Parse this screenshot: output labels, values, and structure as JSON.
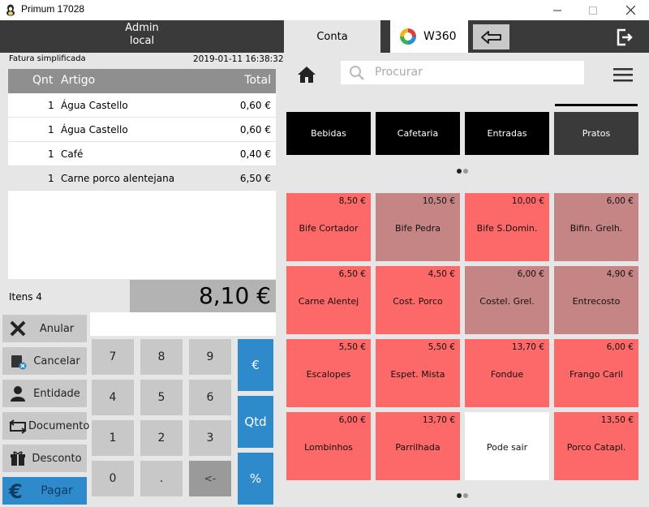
{
  "window": {
    "title": "Primum 17028"
  },
  "user": {
    "name": "Admin",
    "location": "local"
  },
  "tabs": {
    "conta": "Conta",
    "brand": "W360"
  },
  "document": {
    "type": "Fatura simplificada",
    "datetime": "2019-01-11 16:38:32"
  },
  "items_table": {
    "headers": {
      "qty": "Qnt",
      "article": "Artigo",
      "total": "Total"
    },
    "rows": [
      {
        "qty": "1",
        "article": "Água Castello",
        "total": "0,60 €"
      },
      {
        "qty": "1",
        "article": "Água Castello",
        "total": "0,60 €"
      },
      {
        "qty": "1",
        "article": "Café",
        "total": "0,40 €"
      },
      {
        "qty": "1",
        "article": "Carne porco alentejana",
        "total": "6,50 €"
      }
    ]
  },
  "summary": {
    "items_label": "Itens 4",
    "total": "8,10 €"
  },
  "actions": {
    "anular": "Anular",
    "cancelar": "Cancelar",
    "entidade": "Entidade",
    "documento": "Documento",
    "desconto": "Desconto",
    "pagar": "Pagar"
  },
  "keypad": {
    "k7": "7",
    "k8": "8",
    "k9": "9",
    "k4": "4",
    "k5": "5",
    "k6": "6",
    "k1": "1",
    "k2": "2",
    "k3": "3",
    "k0": "0",
    "dot": ".",
    "del": "<-",
    "euro": "€",
    "qtd": "Qtd",
    "percent": "%"
  },
  "search": {
    "placeholder": "Procurar"
  },
  "families": [
    {
      "label": "Bebidas"
    },
    {
      "label": "Cafetaria"
    },
    {
      "label": "Entradas"
    },
    {
      "label": "Pratos"
    }
  ],
  "products": [
    {
      "name": "Bife Cortador",
      "price": "8,50 €",
      "color": "#fd6868"
    },
    {
      "name": "Bife Pedra",
      "price": "10,50 €",
      "color": "#c58585"
    },
    {
      "name": "Bife S.Domin.",
      "price": "10,00 €",
      "color": "#fd6868"
    },
    {
      "name": "Bifin. Grelh.",
      "price": "6,00 €",
      "color": "#c58585"
    },
    {
      "name": "Carne Alentej",
      "price": "6,50 €",
      "color": "#fd6868"
    },
    {
      "name": "Cost. Porco",
      "price": "4,50 €",
      "color": "#fd6868"
    },
    {
      "name": "Costel. Grel.",
      "price": "6,00 €",
      "color": "#c58585"
    },
    {
      "name": "Entrecosto",
      "price": "4,90 €",
      "color": "#c58585"
    },
    {
      "name": "Escalopes",
      "price": "5,50 €",
      "color": "#fd6868"
    },
    {
      "name": "Espet. Mista",
      "price": "5,50 €",
      "color": "#fd6868"
    },
    {
      "name": "Fondue",
      "price": "13,70 €",
      "color": "#fd6868"
    },
    {
      "name": "Frango Caril",
      "price": "6,00 €",
      "color": "#fd6868"
    },
    {
      "name": "Lombinhos",
      "price": "6,00 €",
      "color": "#fd6868"
    },
    {
      "name": "Parrilhada",
      "price": "13,70 €",
      "color": "#fd6868"
    },
    {
      "name": "Pode sair",
      "price": "",
      "color": "#ffffff"
    },
    {
      "name": "Porco Catapl.",
      "price": "13,50 €",
      "color": "#fd6868"
    }
  ],
  "colors": {
    "accent_blue": "#2f8acb",
    "dark_bar": "#3a3a3a",
    "product_red": "#fd6868",
    "product_mauve": "#c58585"
  }
}
